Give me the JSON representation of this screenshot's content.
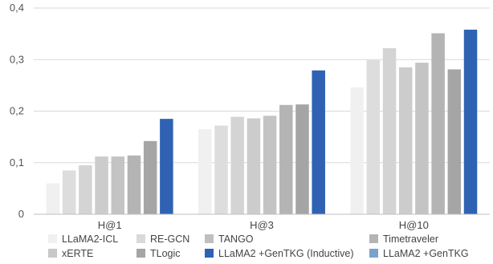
{
  "chart_data": {
    "type": "bar",
    "title": "",
    "xlabel": "",
    "ylabel": "",
    "categories": [
      "H@1",
      "H@3",
      "H@10"
    ],
    "yticks": [
      "0",
      "0,1",
      "0,2",
      "0,3",
      "0,4"
    ],
    "ylim": [
      0,
      0.4
    ],
    "grid": true,
    "legend_position": "bottom",
    "series": [
      {
        "name": "LLaMA2-ICL",
        "color": "#f0f0f0",
        "values": [
          0.06,
          0.165,
          0.246
        ]
      },
      {
        "name": "xERTE",
        "color": "#dddddd",
        "values": [
          0.085,
          0.172,
          0.299
        ]
      },
      {
        "name": "RE-GCN",
        "color": "#d4d4d4",
        "values": [
          0.095,
          0.189,
          0.322
        ]
      },
      {
        "name": "TLogic",
        "color": "#cccccc",
        "values": [
          0.112,
          0.186,
          0.285
        ]
      },
      {
        "name": "TANGO",
        "color": "#c4c4c4",
        "values": [
          0.112,
          0.191,
          0.294
        ]
      },
      {
        "name": "LLaMA2 +GenTKG (Inductive)",
        "color": "#b4b4b4",
        "values": [
          0.114,
          0.212,
          0.351
        ]
      },
      {
        "name": "Timetraveler",
        "color": "#a5a5a5",
        "values": [
          0.142,
          0.213,
          0.281
        ]
      },
      {
        "name": "LLaMA2 +GenTKG",
        "color": "#2f62b3",
        "values": [
          0.185,
          0.279,
          0.358
        ]
      }
    ],
    "legend": [
      {
        "label": "LLaMA2-ICL",
        "color": "#f0f0f0"
      },
      {
        "label": "RE-GCN",
        "color": "#d9d9d9"
      },
      {
        "label": "TANGO",
        "color": "#bfbfbf"
      },
      {
        "label": "Timetraveler",
        "color": "#b4b4b4"
      },
      {
        "label": "xERTE",
        "color": "#c8c8c8"
      },
      {
        "label": "TLogic",
        "color": "#a5a5a5"
      },
      {
        "label": "LLaMA2 +GenTKG (Inductive)",
        "color": "#2f62b3"
      },
      {
        "label": "LLaMA2 +GenTKG",
        "color": "#7aa3cc"
      }
    ]
  }
}
